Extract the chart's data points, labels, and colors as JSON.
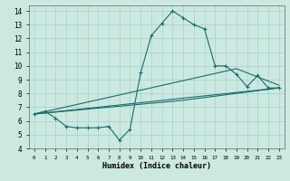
{
  "xlabel": "Humidex (Indice chaleur)",
  "bg_color": "#cce9e1",
  "grid_color": "#aad4cb",
  "line_color": "#1a6b6b",
  "xlim": [
    -0.5,
    23.5
  ],
  "ylim": [
    4,
    14.4
  ],
  "xticks": [
    0,
    1,
    2,
    3,
    4,
    5,
    6,
    7,
    8,
    9,
    10,
    11,
    12,
    13,
    14,
    15,
    16,
    17,
    18,
    19,
    20,
    21,
    22,
    23
  ],
  "yticks": [
    4,
    5,
    6,
    7,
    8,
    9,
    10,
    11,
    12,
    13,
    14
  ],
  "line1_x": [
    0,
    1,
    2,
    3,
    4,
    5,
    6,
    7,
    8,
    9,
    10,
    11,
    12,
    13,
    14,
    15,
    16,
    17,
    18,
    19,
    20,
    21,
    22,
    23
  ],
  "line1_y": [
    6.5,
    6.7,
    6.2,
    5.6,
    5.5,
    5.5,
    5.5,
    5.6,
    4.6,
    5.4,
    9.5,
    12.2,
    13.1,
    14.0,
    13.5,
    13.0,
    12.7,
    10.0,
    10.0,
    9.4,
    8.5,
    9.3,
    8.4,
    8.4
  ],
  "line2_x": [
    0,
    23
  ],
  "line2_y": [
    6.5,
    8.4
  ],
  "line3_x": [
    0,
    14,
    23
  ],
  "line3_y": [
    6.5,
    7.5,
    8.4
  ],
  "line4_x": [
    0,
    19,
    23
  ],
  "line4_y": [
    6.5,
    9.8,
    8.6
  ]
}
